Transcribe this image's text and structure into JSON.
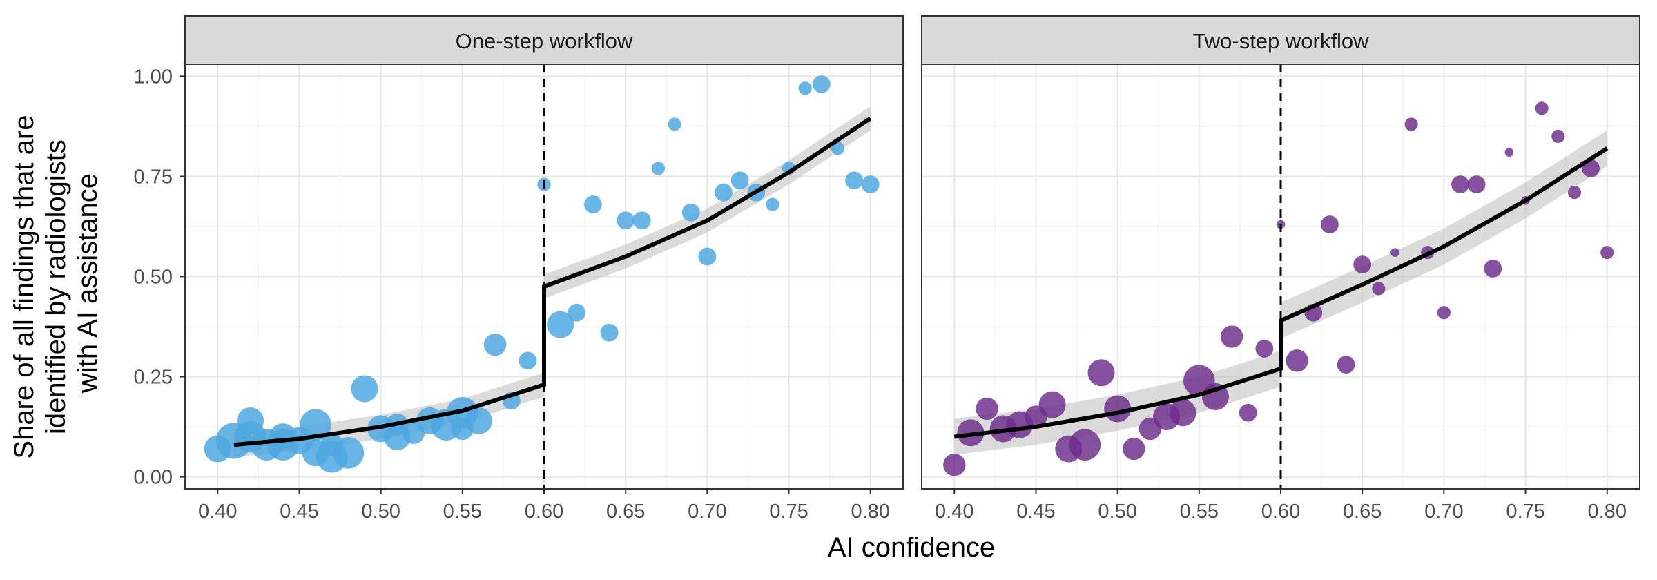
{
  "chart_data": {
    "type": "scatter",
    "xlabel": "AI confidence",
    "ylabel": [
      "Share of all findings that are",
      "identified by radiologists",
      "with AI assistance"
    ],
    "xlim": [
      0.38,
      0.82
    ],
    "ylim": [
      -0.03,
      1.03
    ],
    "x_ticks": [
      0.4,
      0.45,
      0.5,
      0.55,
      0.6,
      0.65,
      0.7,
      0.75,
      0.8
    ],
    "x_tick_labels": [
      "0.40",
      "0.45",
      "0.50",
      "0.55",
      "0.60",
      "0.65",
      "0.70",
      "0.75",
      "0.80"
    ],
    "y_ticks": [
      0,
      0.25,
      0.5,
      0.75,
      1.0
    ],
    "y_tick_labels": [
      "0.00",
      "0.25",
      "0.50",
      "0.75",
      "1.00"
    ],
    "threshold": 0.6,
    "grid": true,
    "panels": [
      {
        "title": "One-step workflow",
        "color": "#4FA8E0",
        "opacity": 0.85,
        "fit": {
          "left": [
            [
              0.41,
              0.08
            ],
            [
              0.45,
              0.095
            ],
            [
              0.5,
              0.125
            ],
            [
              0.55,
              0.165
            ],
            [
              0.6,
              0.23
            ]
          ],
          "right": [
            [
              0.6,
              0.475
            ],
            [
              0.65,
              0.55
            ],
            [
              0.7,
              0.64
            ],
            [
              0.75,
              0.76
            ],
            [
              0.8,
              0.895
            ]
          ],
          "band": 0.03
        },
        "points": [
          {
            "x": 0.4,
            "y": 0.07,
            "size": 5
          },
          {
            "x": 0.41,
            "y": 0.09,
            "size": 7
          },
          {
            "x": 0.42,
            "y": 0.14,
            "size": 5
          },
          {
            "x": 0.42,
            "y": 0.1,
            "size": 6
          },
          {
            "x": 0.43,
            "y": 0.08,
            "size": 6
          },
          {
            "x": 0.44,
            "y": 0.1,
            "size": 5
          },
          {
            "x": 0.44,
            "y": 0.08,
            "size": 6
          },
          {
            "x": 0.45,
            "y": 0.09,
            "size": 5
          },
          {
            "x": 0.46,
            "y": 0.13,
            "size": 6
          },
          {
            "x": 0.46,
            "y": 0.06,
            "size": 5
          },
          {
            "x": 0.47,
            "y": 0.08,
            "size": 4
          },
          {
            "x": 0.47,
            "y": 0.05,
            "size": 6
          },
          {
            "x": 0.48,
            "y": 0.06,
            "size": 6
          },
          {
            "x": 0.49,
            "y": 0.22,
            "size": 5
          },
          {
            "x": 0.5,
            "y": 0.12,
            "size": 5
          },
          {
            "x": 0.51,
            "y": 0.1,
            "size": 5
          },
          {
            "x": 0.51,
            "y": 0.13,
            "size": 4
          },
          {
            "x": 0.52,
            "y": 0.11,
            "size": 4
          },
          {
            "x": 0.53,
            "y": 0.14,
            "size": 5
          },
          {
            "x": 0.54,
            "y": 0.13,
            "size": 6
          },
          {
            "x": 0.55,
            "y": 0.16,
            "size": 6
          },
          {
            "x": 0.55,
            "y": 0.12,
            "size": 4
          },
          {
            "x": 0.56,
            "y": 0.14,
            "size": 5
          },
          {
            "x": 0.57,
            "y": 0.33,
            "size": 4
          },
          {
            "x": 0.58,
            "y": 0.19,
            "size": 3
          },
          {
            "x": 0.59,
            "y": 0.29,
            "size": 3
          },
          {
            "x": 0.6,
            "y": 0.73,
            "size": 2
          },
          {
            "x": 0.61,
            "y": 0.38,
            "size": 5
          },
          {
            "x": 0.62,
            "y": 0.41,
            "size": 3
          },
          {
            "x": 0.63,
            "y": 0.68,
            "size": 3
          },
          {
            "x": 0.64,
            "y": 0.36,
            "size": 3
          },
          {
            "x": 0.65,
            "y": 0.64,
            "size": 3
          },
          {
            "x": 0.66,
            "y": 0.64,
            "size": 3
          },
          {
            "x": 0.67,
            "y": 0.77,
            "size": 2
          },
          {
            "x": 0.68,
            "y": 0.88,
            "size": 2
          },
          {
            "x": 0.69,
            "y": 0.66,
            "size": 3
          },
          {
            "x": 0.7,
            "y": 0.55,
            "size": 3
          },
          {
            "x": 0.71,
            "y": 0.71,
            "size": 3
          },
          {
            "x": 0.72,
            "y": 0.74,
            "size": 3
          },
          {
            "x": 0.73,
            "y": 0.71,
            "size": 3
          },
          {
            "x": 0.74,
            "y": 0.68,
            "size": 2
          },
          {
            "x": 0.75,
            "y": 0.77,
            "size": 2
          },
          {
            "x": 0.76,
            "y": 0.97,
            "size": 2
          },
          {
            "x": 0.77,
            "y": 0.98,
            "size": 3
          },
          {
            "x": 0.78,
            "y": 0.82,
            "size": 2
          },
          {
            "x": 0.79,
            "y": 0.74,
            "size": 3
          },
          {
            "x": 0.8,
            "y": 0.73,
            "size": 3
          }
        ]
      },
      {
        "title": "Two-step workflow",
        "color": "#6B2C8A",
        "opacity": 0.82,
        "fit": {
          "left": [
            [
              0.4,
              0.1
            ],
            [
              0.45,
              0.125
            ],
            [
              0.5,
              0.16
            ],
            [
              0.55,
              0.205
            ],
            [
              0.6,
              0.27
            ]
          ],
          "right": [
            [
              0.6,
              0.39
            ],
            [
              0.65,
              0.48
            ],
            [
              0.7,
              0.575
            ],
            [
              0.75,
              0.69
            ],
            [
              0.8,
              0.82
            ]
          ],
          "band": 0.045
        },
        "points": [
          {
            "x": 0.4,
            "y": 0.03,
            "size": 4
          },
          {
            "x": 0.41,
            "y": 0.11,
            "size": 5
          },
          {
            "x": 0.42,
            "y": 0.17,
            "size": 4
          },
          {
            "x": 0.43,
            "y": 0.12,
            "size": 5
          },
          {
            "x": 0.44,
            "y": 0.13,
            "size": 5
          },
          {
            "x": 0.45,
            "y": 0.15,
            "size": 4
          },
          {
            "x": 0.46,
            "y": 0.18,
            "size": 5
          },
          {
            "x": 0.47,
            "y": 0.07,
            "size": 5
          },
          {
            "x": 0.48,
            "y": 0.08,
            "size": 6
          },
          {
            "x": 0.49,
            "y": 0.26,
            "size": 5
          },
          {
            "x": 0.5,
            "y": 0.17,
            "size": 5
          },
          {
            "x": 0.51,
            "y": 0.07,
            "size": 4
          },
          {
            "x": 0.52,
            "y": 0.12,
            "size": 4
          },
          {
            "x": 0.53,
            "y": 0.15,
            "size": 5
          },
          {
            "x": 0.54,
            "y": 0.16,
            "size": 5
          },
          {
            "x": 0.55,
            "y": 0.24,
            "size": 6
          },
          {
            "x": 0.56,
            "y": 0.2,
            "size": 5
          },
          {
            "x": 0.57,
            "y": 0.35,
            "size": 4
          },
          {
            "x": 0.58,
            "y": 0.16,
            "size": 3
          },
          {
            "x": 0.59,
            "y": 0.32,
            "size": 3
          },
          {
            "x": 0.6,
            "y": 0.63,
            "size": 1
          },
          {
            "x": 0.61,
            "y": 0.29,
            "size": 4
          },
          {
            "x": 0.62,
            "y": 0.41,
            "size": 3
          },
          {
            "x": 0.63,
            "y": 0.63,
            "size": 3
          },
          {
            "x": 0.64,
            "y": 0.28,
            "size": 3
          },
          {
            "x": 0.65,
            "y": 0.53,
            "size": 3
          },
          {
            "x": 0.66,
            "y": 0.47,
            "size": 2
          },
          {
            "x": 0.67,
            "y": 0.56,
            "size": 1
          },
          {
            "x": 0.68,
            "y": 0.88,
            "size": 2
          },
          {
            "x": 0.69,
            "y": 0.56,
            "size": 2
          },
          {
            "x": 0.7,
            "y": 0.41,
            "size": 2
          },
          {
            "x": 0.71,
            "y": 0.73,
            "size": 3
          },
          {
            "x": 0.72,
            "y": 0.73,
            "size": 3
          },
          {
            "x": 0.73,
            "y": 0.52,
            "size": 3
          },
          {
            "x": 0.74,
            "y": 0.81,
            "size": 1
          },
          {
            "x": 0.75,
            "y": 0.69,
            "size": 1
          },
          {
            "x": 0.76,
            "y": 0.92,
            "size": 2
          },
          {
            "x": 0.77,
            "y": 0.85,
            "size": 2
          },
          {
            "x": 0.78,
            "y": 0.71,
            "size": 2
          },
          {
            "x": 0.79,
            "y": 0.77,
            "size": 3
          },
          {
            "x": 0.8,
            "y": 0.56,
            "size": 2
          }
        ]
      }
    ]
  }
}
